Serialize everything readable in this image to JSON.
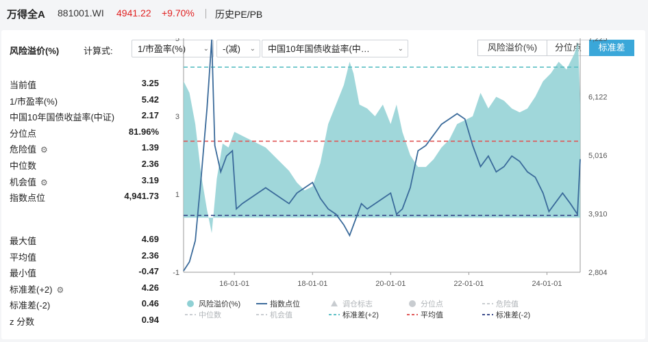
{
  "header": {
    "name": "万得全A",
    "code": "881001.WI",
    "price": "4941.22",
    "change": "+9.70%",
    "pe_link": "历史PE/PB"
  },
  "controls": {
    "title": "风险溢价(%)",
    "calc_label": "计算式:",
    "select1": "1/市盈率(%)",
    "select2": "-(减)",
    "select3": "中国10年国债收益率(中…",
    "buttons": [
      "风险溢价(%)",
      "分位点",
      "标准差"
    ],
    "active_button": 2
  },
  "stats_top": [
    {
      "label": "当前值",
      "value": "3.25",
      "gear": false
    },
    {
      "label": "1/市盈率(%)",
      "value": "5.42",
      "gear": false
    },
    {
      "label": "中国10年国债收益率(中证)",
      "value": "2.17",
      "gear": false
    },
    {
      "label": "分位点",
      "value": "81.96%",
      "gear": false
    },
    {
      "label": "危险值",
      "value": "1.39",
      "gear": true
    },
    {
      "label": "中位数",
      "value": "2.36",
      "gear": false
    },
    {
      "label": "机会值",
      "value": "3.19",
      "gear": true
    },
    {
      "label": "指数点位",
      "value": "4,941.73",
      "gear": false
    }
  ],
  "stats_bottom": [
    {
      "label": "最大值",
      "value": "4.69",
      "gear": false
    },
    {
      "label": "平均值",
      "value": "2.36",
      "gear": false
    },
    {
      "label": "最小值",
      "value": "-0.47",
      "gear": false
    },
    {
      "label": "标准差(+2)",
      "value": "4.26",
      "gear": true
    },
    {
      "label": "标准差(-2)",
      "value": "0.46",
      "gear": false
    },
    {
      "label": "z 分数",
      "value": "0.94",
      "gear": false
    }
  ],
  "colors": {
    "area": "#8fd0d4",
    "index_line": "#3a6a9a",
    "std_plus": "#5bbfc4",
    "mean": "#e05555",
    "std_minus": "#3a4a8a",
    "accent": "#3aa7d9"
  },
  "chart_data": {
    "type": "area",
    "x_ticks": [
      "16-01-01",
      "18-01-01",
      "20-01-01",
      "22-01-01",
      "24-01-01"
    ],
    "y_left_ticks": [
      "5",
      "3",
      "1",
      "-1"
    ],
    "y_left_range": [
      -1,
      5
    ],
    "y_right_ticks": [
      "7,225",
      "6,122",
      "5,016",
      "3,910",
      "2,804"
    ],
    "y_right_range": [
      2804,
      7225
    ],
    "x_range": [
      2014.7,
      2024.85
    ],
    "ref_lines": {
      "std_plus2": 4.26,
      "mean": 2.36,
      "std_minus2": 0.46
    },
    "risk_premium": [
      [
        2014.7,
        3.9
      ],
      [
        2014.85,
        3.6
      ],
      [
        2015.0,
        2.8
      ],
      [
        2015.15,
        1.5
      ],
      [
        2015.3,
        0.6
      ],
      [
        2015.42,
        0.0
      ],
      [
        2015.55,
        1.4
      ],
      [
        2015.7,
        2.3
      ],
      [
        2015.85,
        2.2
      ],
      [
        2016.0,
        2.6
      ],
      [
        2016.2,
        2.5
      ],
      [
        2016.4,
        2.4
      ],
      [
        2016.6,
        2.3
      ],
      [
        2016.8,
        2.2
      ],
      [
        2017.0,
        2.0
      ],
      [
        2017.2,
        1.8
      ],
      [
        2017.4,
        1.6
      ],
      [
        2017.6,
        1.3
      ],
      [
        2017.8,
        1.1
      ],
      [
        2018.0,
        1.2
      ],
      [
        2018.2,
        1.8
      ],
      [
        2018.4,
        2.8
      ],
      [
        2018.6,
        3.3
      ],
      [
        2018.8,
        3.8
      ],
      [
        2018.95,
        4.4
      ],
      [
        2019.05,
        4.1
      ],
      [
        2019.2,
        3.3
      ],
      [
        2019.4,
        3.2
      ],
      [
        2019.6,
        3.0
      ],
      [
        2019.8,
        3.3
      ],
      [
        2020.0,
        2.8
      ],
      [
        2020.15,
        3.3
      ],
      [
        2020.3,
        2.6
      ],
      [
        2020.5,
        2.0
      ],
      [
        2020.7,
        1.7
      ],
      [
        2020.9,
        1.7
      ],
      [
        2021.1,
        1.9
      ],
      [
        2021.3,
        2.2
      ],
      [
        2021.5,
        2.4
      ],
      [
        2021.7,
        2.8
      ],
      [
        2021.9,
        2.9
      ],
      [
        2022.1,
        3.0
      ],
      [
        2022.3,
        3.6
      ],
      [
        2022.5,
        3.2
      ],
      [
        2022.7,
        3.5
      ],
      [
        2022.9,
        3.4
      ],
      [
        2023.1,
        3.2
      ],
      [
        2023.3,
        3.1
      ],
      [
        2023.5,
        3.2
      ],
      [
        2023.7,
        3.5
      ],
      [
        2023.9,
        3.9
      ],
      [
        2024.1,
        4.1
      ],
      [
        2024.3,
        4.4
      ],
      [
        2024.5,
        4.2
      ],
      [
        2024.7,
        4.6
      ],
      [
        2024.8,
        4.9
      ],
      [
        2024.85,
        3.3
      ]
    ],
    "index_level": [
      [
        2014.7,
        2830
      ],
      [
        2014.85,
        3000
      ],
      [
        2015.0,
        3400
      ],
      [
        2015.15,
        4600
      ],
      [
        2015.3,
        5900
      ],
      [
        2015.42,
        7200
      ],
      [
        2015.5,
        5200
      ],
      [
        2015.65,
        4700
      ],
      [
        2015.8,
        5000
      ],
      [
        2015.95,
        5100
      ],
      [
        2016.05,
        4000
      ],
      [
        2016.2,
        4100
      ],
      [
        2016.4,
        4200
      ],
      [
        2016.6,
        4300
      ],
      [
        2016.8,
        4400
      ],
      [
        2017.0,
        4300
      ],
      [
        2017.2,
        4200
      ],
      [
        2017.4,
        4100
      ],
      [
        2017.6,
        4300
      ],
      [
        2017.8,
        4400
      ],
      [
        2018.0,
        4500
      ],
      [
        2018.2,
        4200
      ],
      [
        2018.4,
        4000
      ],
      [
        2018.6,
        3900
      ],
      [
        2018.8,
        3700
      ],
      [
        2018.95,
        3500
      ],
      [
        2019.1,
        3800
      ],
      [
        2019.25,
        4100
      ],
      [
        2019.4,
        4000
      ],
      [
        2019.6,
        4100
      ],
      [
        2019.8,
        4200
      ],
      [
        2020.0,
        4300
      ],
      [
        2020.15,
        3900
      ],
      [
        2020.3,
        4000
      ],
      [
        2020.5,
        4400
      ],
      [
        2020.7,
        5100
      ],
      [
        2020.9,
        5200
      ],
      [
        2021.1,
        5400
      ],
      [
        2021.3,
        5600
      ],
      [
        2021.5,
        5700
      ],
      [
        2021.7,
        5800
      ],
      [
        2021.9,
        5700
      ],
      [
        2022.1,
        5200
      ],
      [
        2022.3,
        4800
      ],
      [
        2022.5,
        5000
      ],
      [
        2022.7,
        4700
      ],
      [
        2022.9,
        4800
      ],
      [
        2023.1,
        5000
      ],
      [
        2023.3,
        4900
      ],
      [
        2023.5,
        4700
      ],
      [
        2023.7,
        4600
      ],
      [
        2023.9,
        4300
      ],
      [
        2024.05,
        3950
      ],
      [
        2024.2,
        4100
      ],
      [
        2024.4,
        4300
      ],
      [
        2024.6,
        4100
      ],
      [
        2024.78,
        3900
      ],
      [
        2024.85,
        4941
      ]
    ],
    "legend": [
      {
        "label": "风险溢价(%)",
        "kind": "dot",
        "color": "#8fd0d4",
        "muted": false
      },
      {
        "label": "指数点位",
        "kind": "line",
        "color": "#3a6a9a",
        "muted": false
      },
      {
        "label": "调仓标志",
        "kind": "triangle",
        "color": "#c8ccd0",
        "muted": true
      },
      {
        "label": "分位点",
        "kind": "dot",
        "color": "#c8ccd0",
        "muted": true
      },
      {
        "label": "危险值",
        "kind": "dash",
        "color": "#c8ccd0",
        "muted": true
      },
      {
        "label": "中位数",
        "kind": "dash",
        "color": "#c8ccd0",
        "muted": true
      },
      {
        "label": "机会值",
        "kind": "dash",
        "color": "#c8ccd0",
        "muted": true
      },
      {
        "label": "标准差(+2)",
        "kind": "dash",
        "color": "#5bbfc4",
        "muted": false
      },
      {
        "label": "平均值",
        "kind": "dash",
        "color": "#e05555",
        "muted": false
      },
      {
        "label": "标准差(-2)",
        "kind": "dash",
        "color": "#3a4a8a",
        "muted": false
      }
    ]
  }
}
